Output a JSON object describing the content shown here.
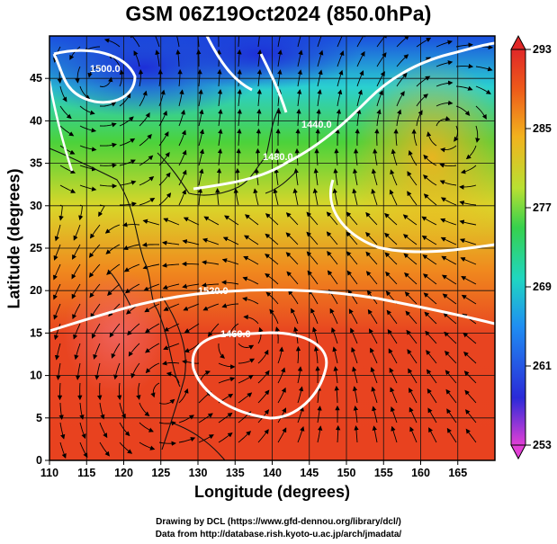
{
  "title": "GSM 06Z19Oct2024 (850.0hPa)",
  "x_axis": {
    "label": "Longitude (degrees)",
    "ticks": [
      "110",
      "115",
      "120",
      "125",
      "130",
      "135",
      "140",
      "145",
      "150",
      "155",
      "160",
      "165"
    ]
  },
  "y_axis": {
    "label": "Latitude  (degrees)",
    "ticks": [
      "0",
      "5",
      "10",
      "15",
      "20",
      "25",
      "30",
      "35",
      "40",
      "45"
    ]
  },
  "colorbar": {
    "ticks": [
      "293",
      "285",
      "277",
      "269",
      "261",
      "253"
    ]
  },
  "contour_labels": [
    "1500.0",
    "1440.0",
    "1480.0",
    "1520.0",
    "1460.0"
  ],
  "credits": [
    "Drawing by DCL (https://www.gfd-dennou.org/library/dcl/)",
    "Data from http://database.rish.kyoto-u.ac.jp/arch/jmadata/"
  ],
  "chart_data": {
    "type": "heatmap",
    "title": "GSM 06Z19Oct2024 (850.0hPa)",
    "xlabel": "Longitude (degrees)",
    "ylabel": "Latitude  (degrees)",
    "xlim": [
      110,
      170
    ],
    "ylim": [
      0,
      50
    ],
    "colorbar_range": [
      253,
      293
    ],
    "grid": true,
    "colormap_stops": [
      "#e23fd6",
      "#2a2ad8",
      "#1f8ef2",
      "#20d6c2",
      "#36d14d",
      "#b9e032",
      "#f2b21e",
      "#ee5a1a",
      "#e02828"
    ],
    "contours": [
      {
        "label": "1500.0",
        "lon": 119,
        "lat": 45.5
      },
      {
        "label": "1440.0",
        "lon": 141,
        "lat": 39.5
      },
      {
        "label": "1480.0",
        "lon": 139,
        "lat": 36
      },
      {
        "label": "1520.0",
        "lon": 128,
        "lat": 22
      },
      {
        "label": "1460.0",
        "lon": 136,
        "lat": 15
      }
    ]
  }
}
